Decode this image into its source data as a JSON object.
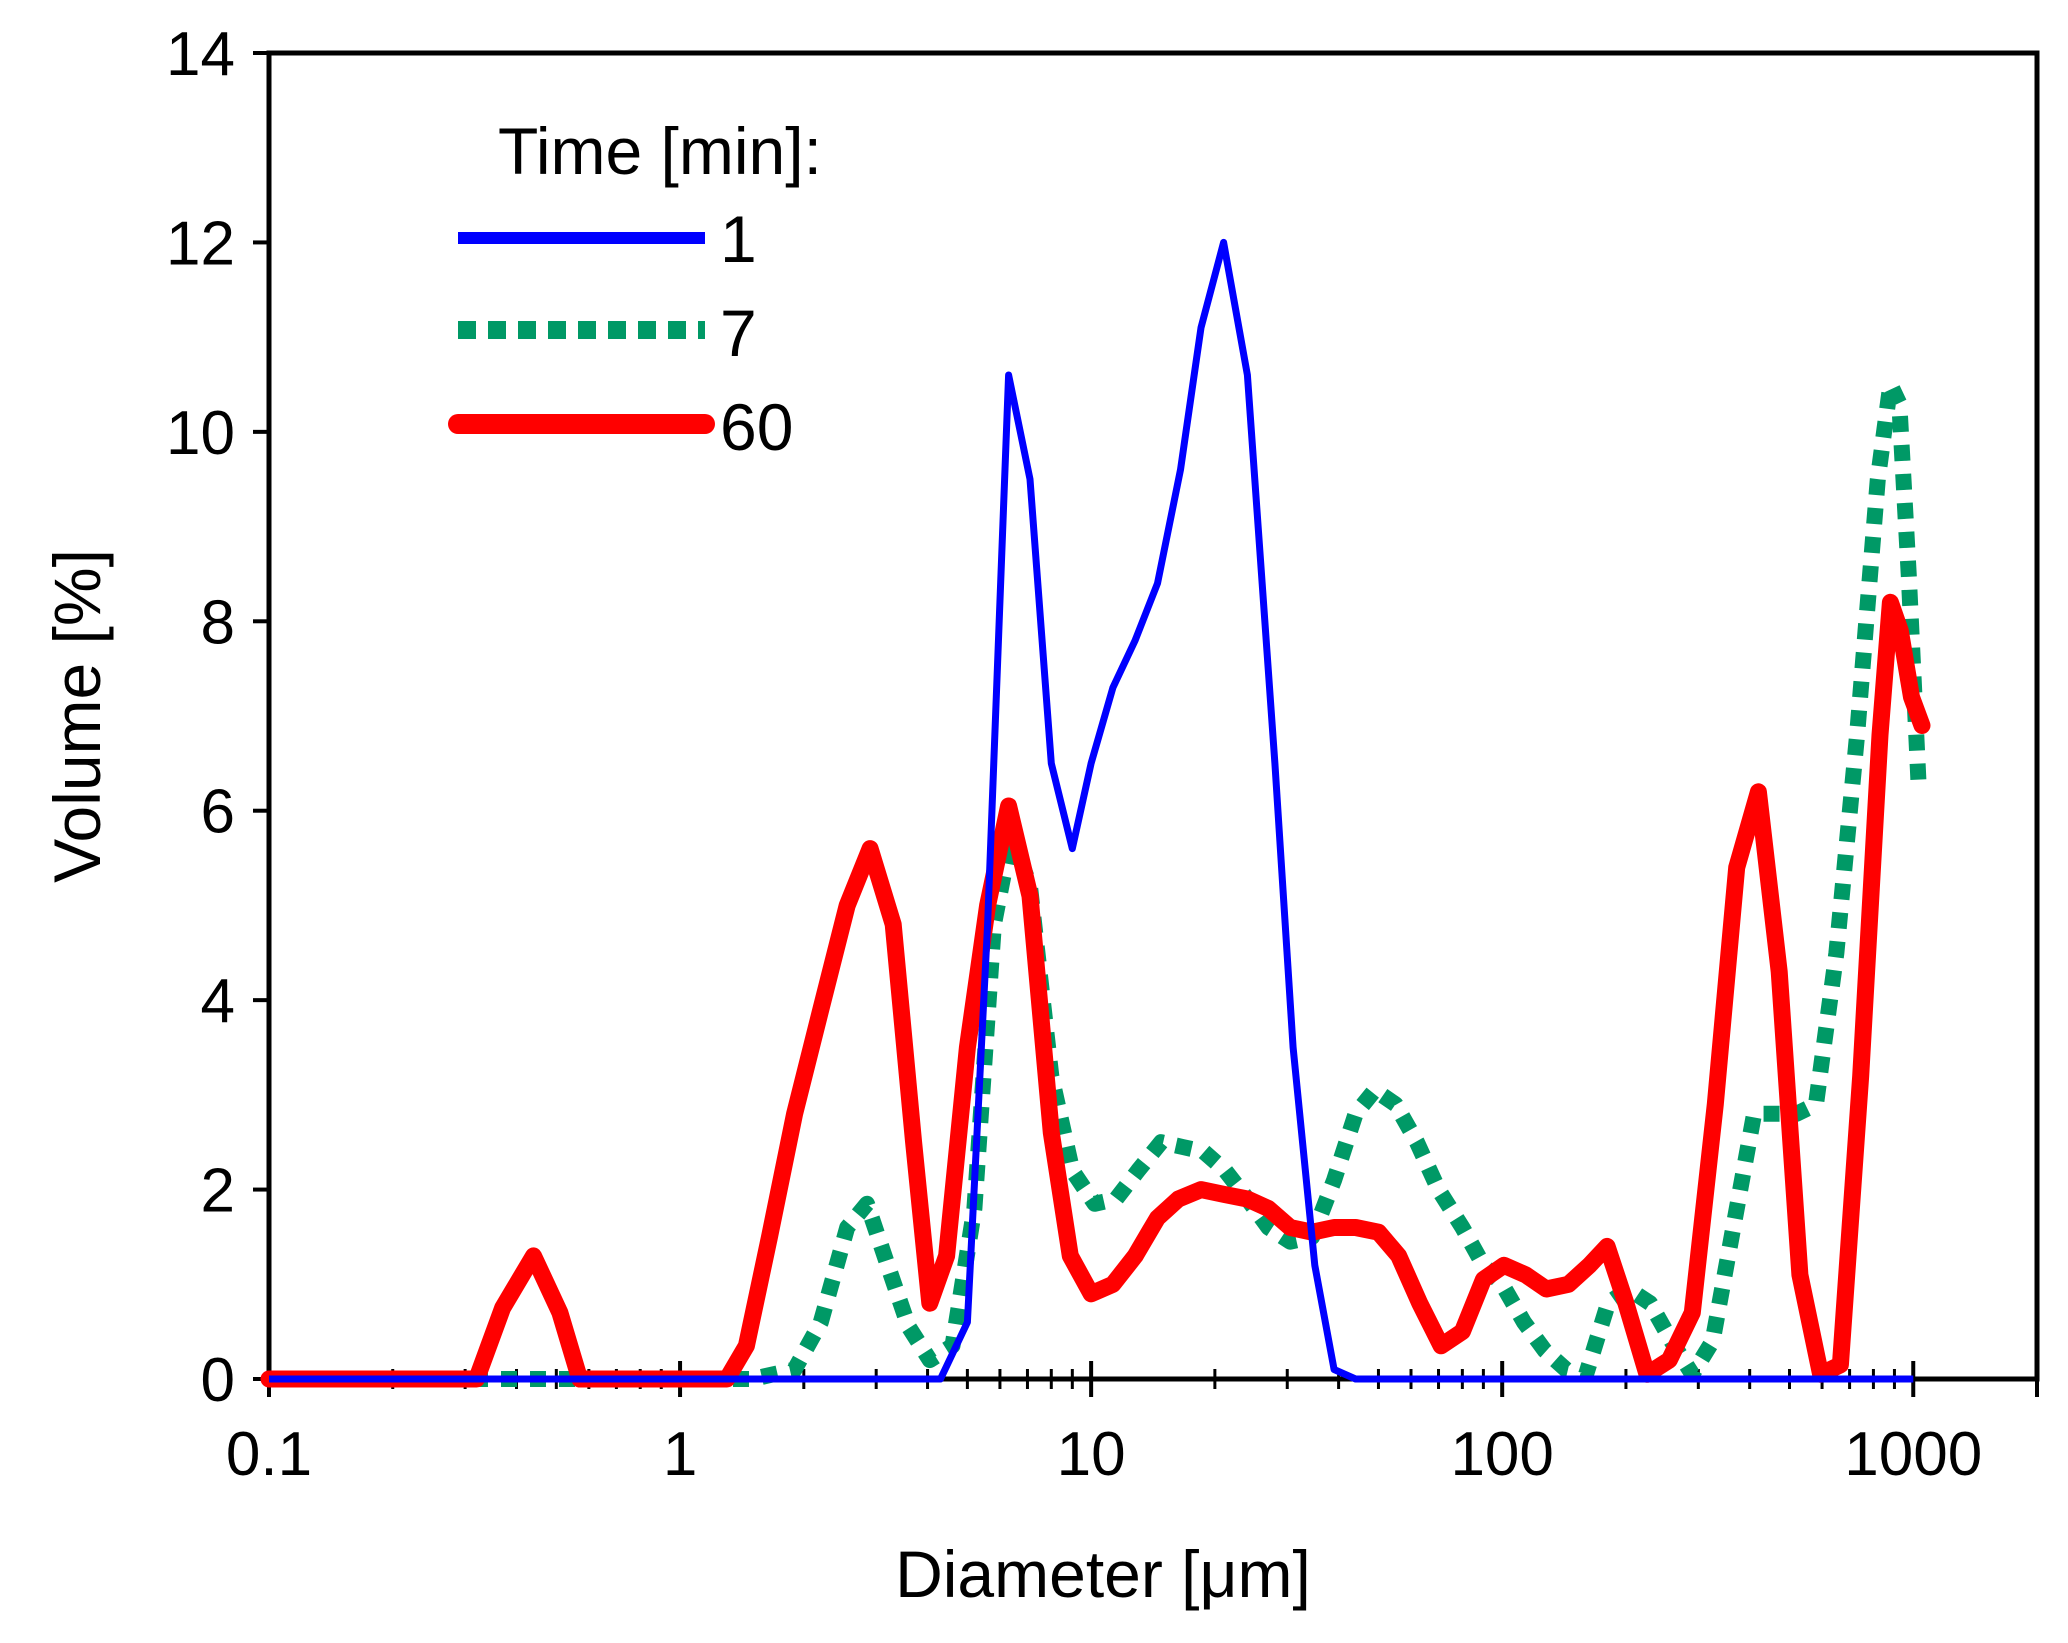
{
  "chart_data": {
    "type": "line",
    "xlabel": "Diameter [μm]",
    "ylabel": "Volume [%]",
    "xscale": "log",
    "xlim": [
      0.1,
      2000
    ],
    "ylim": [
      0,
      14
    ],
    "yticks": [
      0,
      2,
      4,
      6,
      8,
      10,
      12,
      14
    ],
    "xticks": [
      0.1,
      1,
      10,
      100,
      1000
    ],
    "xtick_labels": [
      "0.1",
      "1",
      "10",
      "100",
      "1000"
    ],
    "ytick_labels": [
      "0",
      "2",
      "4",
      "6",
      "8",
      "10",
      "12",
      "14"
    ],
    "grid": false,
    "legend": {
      "title": "Time [min]:",
      "placement": "top-left"
    },
    "series": [
      {
        "name": "1",
        "color": "#0000ff",
        "style": "solid",
        "points": [
          [
            0.1,
            0
          ],
          [
            4.3,
            0
          ],
          [
            5.0,
            0.6
          ],
          [
            5.6,
            4.8
          ],
          [
            6.3,
            10.6
          ],
          [
            7.1,
            9.5
          ],
          [
            8.0,
            6.5
          ],
          [
            9.0,
            5.6
          ],
          [
            10.0,
            6.5
          ],
          [
            11.3,
            7.3
          ],
          [
            12.8,
            7.8
          ],
          [
            14.5,
            8.4
          ],
          [
            16.5,
            9.6
          ],
          [
            18.5,
            11.1
          ],
          [
            21.0,
            12.0
          ],
          [
            24.0,
            10.6
          ],
          [
            28.0,
            6.5
          ],
          [
            31.0,
            3.5
          ],
          [
            35.0,
            1.2
          ],
          [
            39.0,
            0.1
          ],
          [
            44.0,
            0
          ],
          [
            1000,
            0
          ]
        ]
      },
      {
        "name": "7",
        "color": "#009966",
        "style": "dotted",
        "points": [
          [
            0.1,
            0
          ],
          [
            1.5,
            0
          ],
          [
            1.9,
            0.1
          ],
          [
            2.2,
            0.6
          ],
          [
            2.55,
            1.6
          ],
          [
            2.85,
            1.85
          ],
          [
            3.2,
            1.2
          ],
          [
            3.6,
            0.55
          ],
          [
            4.05,
            0.2
          ],
          [
            4.6,
            0.35
          ],
          [
            5.2,
            1.8
          ],
          [
            5.8,
            4.8
          ],
          [
            6.4,
            5.75
          ],
          [
            7.1,
            5.2
          ],
          [
            8.0,
            3.2
          ],
          [
            9.0,
            2.2
          ],
          [
            10.2,
            1.85
          ],
          [
            11.5,
            1.9
          ],
          [
            13.0,
            2.2
          ],
          [
            14.8,
            2.5
          ],
          [
            16.7,
            2.45
          ],
          [
            18.8,
            2.4
          ],
          [
            21.2,
            2.2
          ],
          [
            24.0,
            1.9
          ],
          [
            27.0,
            1.6
          ],
          [
            30.5,
            1.45
          ],
          [
            34.5,
            1.5
          ],
          [
            39.0,
            2.1
          ],
          [
            44.0,
            2.8
          ],
          [
            49.0,
            3.05
          ],
          [
            55.0,
            2.9
          ],
          [
            62.0,
            2.5
          ],
          [
            70.0,
            2.0
          ],
          [
            80.0,
            1.6
          ],
          [
            90.0,
            1.2
          ],
          [
            100.0,
            1.0
          ],
          [
            113.0,
            0.6
          ],
          [
            127.0,
            0.3
          ],
          [
            143.0,
            0.1
          ],
          [
            160.0,
            0.05
          ],
          [
            181.0,
            0.8
          ],
          [
            203.0,
            0.95
          ],
          [
            229.0,
            0.8
          ],
          [
            258.0,
            0.4
          ],
          [
            290.0,
            0.05
          ],
          [
            325.0,
            0.4
          ],
          [
            365.0,
            1.6
          ],
          [
            410.0,
            2.8
          ],
          [
            460.0,
            2.8
          ],
          [
            520.0,
            2.8
          ],
          [
            580.0,
            2.9
          ],
          [
            650.0,
            4.5
          ],
          [
            730.0,
            6.8
          ],
          [
            820.0,
            9.5
          ],
          [
            880.0,
            10.5
          ],
          [
            925.0,
            10.3
          ],
          [
            975.0,
            8.5
          ],
          [
            1030.0,
            6.3
          ]
        ]
      },
      {
        "name": "60",
        "color": "#ff0000",
        "style": "solid",
        "points": [
          [
            0.1,
            0
          ],
          [
            0.32,
            0
          ],
          [
            0.37,
            0.75
          ],
          [
            0.44,
            1.3
          ],
          [
            0.51,
            0.7
          ],
          [
            0.57,
            0
          ],
          [
            1.0,
            0
          ],
          [
            1.3,
            0
          ],
          [
            1.45,
            0.35
          ],
          [
            1.65,
            1.5
          ],
          [
            1.9,
            2.8
          ],
          [
            2.2,
            3.9
          ],
          [
            2.55,
            5.0
          ],
          [
            2.9,
            5.6
          ],
          [
            3.3,
            4.8
          ],
          [
            3.7,
            2.5
          ],
          [
            4.05,
            0.8
          ],
          [
            4.45,
            1.3
          ],
          [
            5.0,
            3.5
          ],
          [
            5.6,
            5.0
          ],
          [
            6.3,
            6.05
          ],
          [
            7.1,
            5.1
          ],
          [
            8.0,
            2.6
          ],
          [
            8.9,
            1.3
          ],
          [
            10.0,
            0.9
          ],
          [
            11.3,
            1.0
          ],
          [
            12.8,
            1.3
          ],
          [
            14.5,
            1.7
          ],
          [
            16.3,
            1.9
          ],
          [
            18.5,
            2.0
          ],
          [
            21.0,
            1.95
          ],
          [
            24.0,
            1.9
          ],
          [
            27.0,
            1.8
          ],
          [
            30.5,
            1.6
          ],
          [
            34.5,
            1.55
          ],
          [
            39.0,
            1.6
          ],
          [
            44.0,
            1.6
          ],
          [
            50.0,
            1.55
          ],
          [
            56.0,
            1.3
          ],
          [
            63.0,
            0.8
          ],
          [
            71.0,
            0.35
          ],
          [
            80.0,
            0.5
          ],
          [
            90.0,
            1.05
          ],
          [
            101.0,
            1.2
          ],
          [
            114.0,
            1.1
          ],
          [
            128.0,
            0.95
          ],
          [
            145.0,
            1.0
          ],
          [
            163.0,
            1.2
          ],
          [
            180.0,
            1.4
          ],
          [
            200.0,
            0.8
          ],
          [
            225.0,
            0.05
          ],
          [
            255.0,
            0.2
          ],
          [
            290.0,
            0.7
          ],
          [
            330.0,
            2.9
          ],
          [
            372.0,
            5.4
          ],
          [
            420.0,
            6.2
          ],
          [
            472.0,
            4.3
          ],
          [
            530.0,
            1.1
          ],
          [
            595.0,
            0.05
          ],
          [
            665.0,
            0.15
          ],
          [
            745.0,
            3.2
          ],
          [
            830.0,
            6.8
          ],
          [
            880.0,
            8.2
          ],
          [
            930.0,
            7.9
          ],
          [
            990.0,
            7.2
          ],
          [
            1050.0,
            6.9
          ]
        ]
      }
    ]
  }
}
